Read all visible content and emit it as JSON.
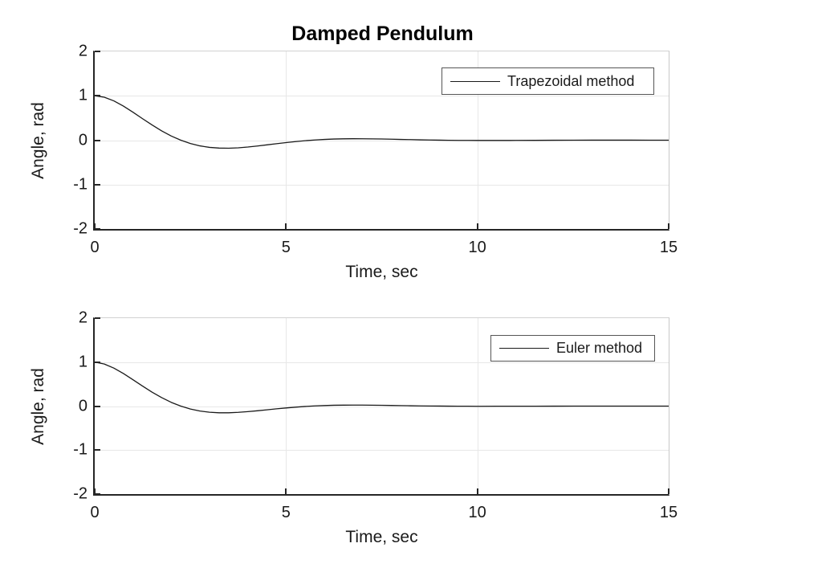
{
  "figure": {
    "title": "Damped Pendulum",
    "background_color": "#ffffff",
    "grid_color": "#e7e7e7",
    "axis_color": "#262626",
    "curve_color": "#1a1a1a",
    "legend_border_color": "#565656"
  },
  "chart_data": [
    {
      "type": "line",
      "title": "Damped Pendulum",
      "xlabel": "Time, sec",
      "ylabel": "Angle, rad",
      "xlim": [
        0,
        15
      ],
      "ylim": [
        -2,
        2
      ],
      "xtick_values": [
        0,
        5,
        10,
        15
      ],
      "xtick_labels": [
        "0",
        "5",
        "10",
        "15"
      ],
      "ytick_values": [
        2,
        1,
        0,
        -1,
        -2
      ],
      "ytick_labels": [
        "2",
        "1",
        "0",
        "-1",
        "-2"
      ],
      "grid": true,
      "legend_position": "northeast",
      "series": [
        {
          "name": "Trapezoidal method",
          "color": "#1a1a1a",
          "x": [
            0,
            0.25,
            0.5,
            0.75,
            1,
            1.25,
            1.5,
            1.75,
            2,
            2.25,
            2.5,
            2.75,
            3,
            3.25,
            3.5,
            3.75,
            4,
            4.25,
            4.5,
            4.75,
            5,
            5.25,
            5.5,
            5.75,
            6,
            6.25,
            6.5,
            6.75,
            7,
            7.25,
            7.5,
            7.75,
            8,
            8.25,
            8.5,
            8.75,
            9,
            9.25,
            9.5,
            9.75,
            10,
            10.5,
            11,
            11.5,
            12,
            12.5,
            13,
            13.5,
            14,
            14.5,
            15
          ],
          "y": [
            1.0,
            0.969,
            0.886,
            0.768,
            0.63,
            0.484,
            0.342,
            0.21,
            0.094,
            0.0,
            -0.075,
            -0.128,
            -0.162,
            -0.178,
            -0.181,
            -0.172,
            -0.154,
            -0.131,
            -0.105,
            -0.079,
            -0.054,
            -0.031,
            -0.011,
            0.005,
            0.017,
            0.026,
            0.031,
            0.033,
            0.032,
            0.03,
            0.027,
            0.022,
            0.017,
            0.013,
            0.008,
            0.004,
            0.001,
            -0.002,
            -0.004,
            -0.005,
            -0.006,
            -0.006,
            -0.005,
            -0.003,
            -0.001,
            0.0,
            0.001,
            0.001,
            0.001,
            0.0,
            0.0
          ]
        }
      ]
    },
    {
      "type": "line",
      "title": "",
      "xlabel": "Time, sec",
      "ylabel": "Angle, rad",
      "xlim": [
        0,
        15
      ],
      "ylim": [
        -2,
        2
      ],
      "xtick_values": [
        0,
        5,
        10,
        15
      ],
      "xtick_labels": [
        "0",
        "5",
        "10",
        "15"
      ],
      "ytick_values": [
        2,
        1,
        0,
        -1,
        -2
      ],
      "ytick_labels": [
        "2",
        "1",
        "0",
        "-1",
        "-2"
      ],
      "grid": true,
      "legend_position": "northeast",
      "series": [
        {
          "name": "Euler method",
          "color": "#1a1a1a",
          "x": [
            0,
            0.25,
            0.5,
            0.75,
            1,
            1.25,
            1.5,
            1.75,
            2,
            2.25,
            2.5,
            2.75,
            3,
            3.25,
            3.5,
            3.75,
            4,
            4.25,
            4.5,
            4.75,
            5,
            5.25,
            5.5,
            5.75,
            6,
            6.25,
            6.5,
            6.75,
            7,
            7.25,
            7.5,
            7.75,
            8,
            8.25,
            8.5,
            8.75,
            9,
            9.25,
            9.5,
            9.75,
            10,
            10.5,
            11,
            11.5,
            12,
            12.5,
            13,
            13.5,
            14,
            14.5,
            15
          ],
          "y": [
            1.0,
            0.957,
            0.864,
            0.74,
            0.599,
            0.455,
            0.317,
            0.193,
            0.085,
            0.0,
            -0.066,
            -0.112,
            -0.139,
            -0.152,
            -0.152,
            -0.142,
            -0.126,
            -0.106,
            -0.084,
            -0.062,
            -0.042,
            -0.024,
            -0.008,
            0.004,
            0.013,
            0.019,
            0.022,
            0.023,
            0.023,
            0.021,
            0.018,
            0.015,
            0.012,
            0.008,
            0.005,
            0.003,
            0.001,
            -0.001,
            -0.002,
            -0.003,
            -0.004,
            -0.003,
            -0.003,
            -0.002,
            -0.001,
            0.0,
            0.0,
            0.0,
            0.0,
            0.0,
            0.0
          ]
        }
      ]
    }
  ]
}
